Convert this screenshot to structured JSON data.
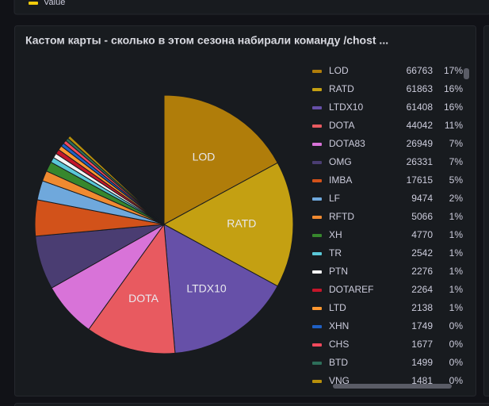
{
  "top_panel": {
    "legend": "Value"
  },
  "chart_data": {
    "type": "pie",
    "title": "Кастом карты - сколько в этом сезона набирали команду /chost ...",
    "categories": [
      "LOD",
      "RATD",
      "LTDX10",
      "DOTA",
      "DOTA83",
      "OMG",
      "IMBA",
      "LF",
      "RFTD",
      "XH",
      "TR",
      "PTN",
      "DOTAREF",
      "LTD",
      "XHN",
      "CHS",
      "BTD",
      "VNG"
    ],
    "values": [
      66763,
      61863,
      61408,
      44042,
      26949,
      26331,
      17615,
      9474,
      5066,
      4770,
      2542,
      2276,
      2264,
      2138,
      1749,
      1677,
      1499,
      1481
    ],
    "percents": [
      17,
      16,
      16,
      11,
      7,
      7,
      5,
      2,
      1,
      1,
      1,
      1,
      1,
      1,
      0,
      0,
      0,
      0
    ],
    "percent_labels": [
      "17%",
      "16%",
      "16%",
      "11%",
      "7%",
      "7%",
      "5%",
      "2%",
      "1%",
      "1%",
      "1%",
      "1%",
      "1%",
      "1%",
      "0%",
      "0%",
      "0%",
      "0%"
    ],
    "colors": [
      "#b07d0a",
      "#c4a012",
      "#6650a8",
      "#e85a60",
      "#d873d8",
      "#4a3d72",
      "#d2521a",
      "#6fa8dc",
      "#f08a30",
      "#37872d",
      "#5ac8d8",
      "#f4f4f4",
      "#c4162a",
      "#ff9830",
      "#1f60c4",
      "#f2495c",
      "#2d6e5a",
      "#b8900b"
    ],
    "legend": "right"
  }
}
